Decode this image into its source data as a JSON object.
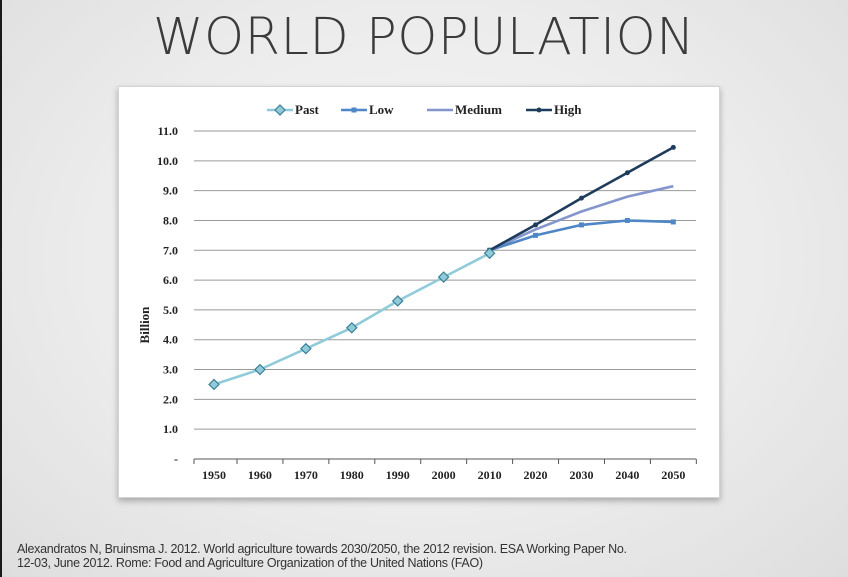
{
  "slide": {
    "title": "WORLD POPULATION",
    "citation_line1": "Alexandratos N, Bruinsma J. 2012. World agriculture towards 2030/2050, the 2012 revision. ESA Working Paper No.",
    "citation_line2": "12-03, June 2012. Rome: Food and Agriculture Organization of the United Nations (FAO)"
  },
  "chart_data": {
    "type": "line",
    "title": "",
    "xlabel": "",
    "ylabel": "Billion",
    "x_ticks": [
      "1950",
      "1960",
      "1970",
      "1980",
      "1990",
      "2000",
      "2010",
      "2020",
      "2030",
      "2040",
      "2050"
    ],
    "y_ticks": [
      "-",
      "1.0",
      "2.0",
      "3.0",
      "4.0",
      "5.0",
      "6.0",
      "7.0",
      "8.0",
      "9.0",
      "10.0",
      "11.0"
    ],
    "xlim": [
      1950,
      2050
    ],
    "ylim": [
      0,
      11
    ],
    "grid": "horizontal",
    "legend_position": "top",
    "series": [
      {
        "name": "Past",
        "color": "#8fcbd9",
        "marker": "diamond",
        "points": [
          [
            1950,
            2.5
          ],
          [
            1960,
            3.0
          ],
          [
            1970,
            3.7
          ],
          [
            1980,
            4.4
          ],
          [
            1990,
            5.3
          ],
          [
            2000,
            6.1
          ],
          [
            2010,
            6.9
          ]
        ]
      },
      {
        "name": "Low",
        "color": "#4f86c6",
        "marker": "square",
        "points": [
          [
            2010,
            7.0
          ],
          [
            2020,
            7.5
          ],
          [
            2030,
            7.85
          ],
          [
            2040,
            8.0
          ],
          [
            2050,
            7.95
          ]
        ]
      },
      {
        "name": "Medium",
        "color": "#8596cc",
        "marker": "none",
        "points": [
          [
            2010,
            7.0
          ],
          [
            2020,
            7.7
          ],
          [
            2030,
            8.3
          ],
          [
            2040,
            8.8
          ],
          [
            2050,
            9.15
          ]
        ]
      },
      {
        "name": "High",
        "color": "#1f3c5c",
        "marker": "dot",
        "points": [
          [
            2010,
            7.0
          ],
          [
            2020,
            7.85
          ],
          [
            2030,
            8.75
          ],
          [
            2040,
            9.6
          ],
          [
            2050,
            10.45
          ]
        ]
      }
    ]
  }
}
